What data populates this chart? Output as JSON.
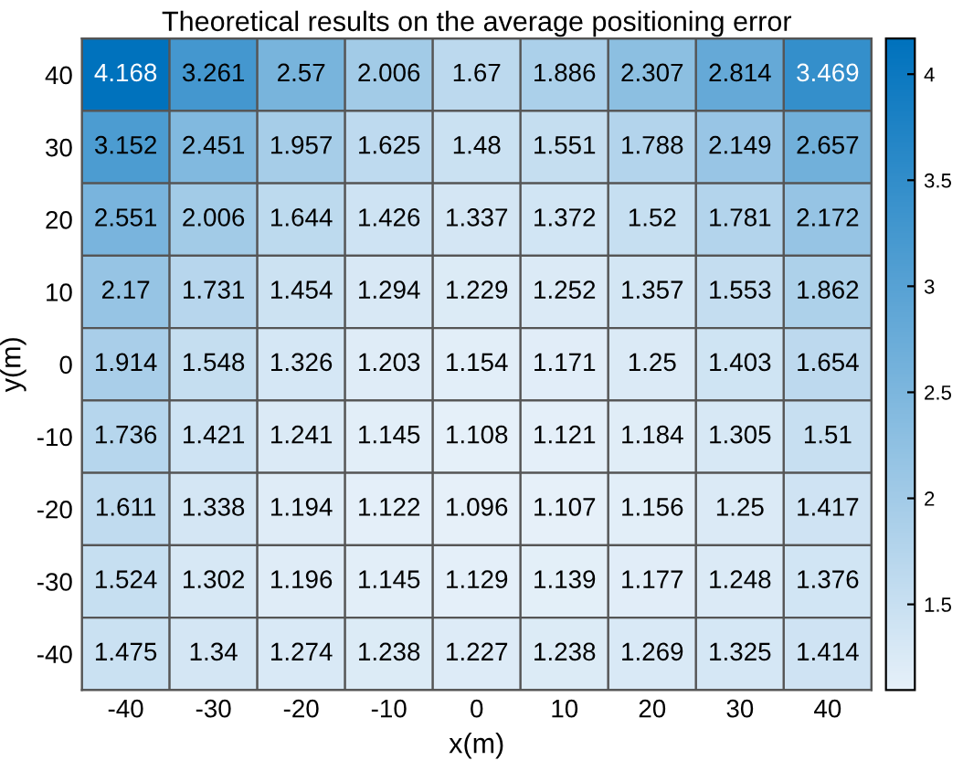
{
  "chart_data": {
    "type": "heatmap",
    "title": "Theoretical results on the average positioning error",
    "xlabel": "x(m)",
    "ylabel": "y(m)",
    "categories": [
      "-40",
      "-30",
      "-20",
      "-10",
      "0",
      "10",
      "20",
      "30",
      "40"
    ],
    "y_categories": [
      "40",
      "30",
      "20",
      "10",
      "0",
      "-10",
      "-20",
      "-30",
      "-40"
    ],
    "cells": [
      [
        4.168,
        3.261,
        2.57,
        2.006,
        1.67,
        1.886,
        2.307,
        2.814,
        3.469
      ],
      [
        3.152,
        2.451,
        1.957,
        1.625,
        1.48,
        1.551,
        1.788,
        2.149,
        2.657
      ],
      [
        2.551,
        2.006,
        1.644,
        1.426,
        1.337,
        1.372,
        1.52,
        1.781,
        2.172
      ],
      [
        2.17,
        1.731,
        1.454,
        1.294,
        1.229,
        1.252,
        1.357,
        1.553,
        1.862
      ],
      [
        1.914,
        1.548,
        1.326,
        1.203,
        1.154,
        1.171,
        1.25,
        1.403,
        1.654
      ],
      [
        1.736,
        1.421,
        1.241,
        1.145,
        1.108,
        1.121,
        1.184,
        1.305,
        1.51
      ],
      [
        1.611,
        1.338,
        1.194,
        1.122,
        1.096,
        1.107,
        1.156,
        1.25,
        1.417
      ],
      [
        1.524,
        1.302,
        1.196,
        1.145,
        1.129,
        1.139,
        1.177,
        1.248,
        1.376
      ],
      [
        1.475,
        1.34,
        1.274,
        1.238,
        1.227,
        1.238,
        1.269,
        1.325,
        1.414
      ]
    ],
    "clim": [
      1.096,
      4.168
    ],
    "cticks": [
      1.5,
      2,
      2.5,
      3,
      3.5,
      4
    ],
    "colors": [
      "#e6f0f9",
      "#0072bd"
    ],
    "data_labels": true
  }
}
